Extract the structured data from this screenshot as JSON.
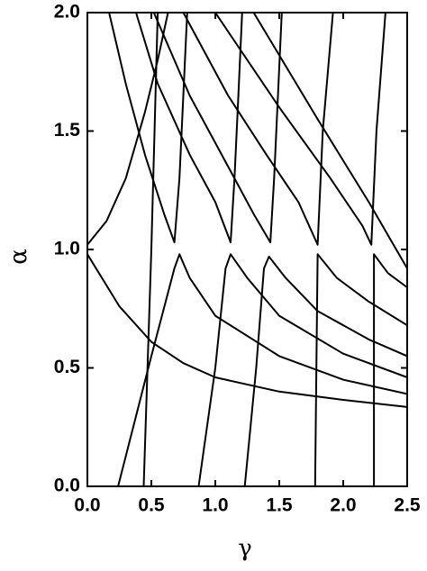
{
  "chart_data": {
    "type": "line",
    "xlabel": "γ",
    "ylabel": "α",
    "xlim": [
      0,
      2.5
    ],
    "ylim": [
      0,
      2.0
    ],
    "xticks": [
      {
        "value": 0,
        "label": "0.0"
      },
      {
        "value": 0.5,
        "label": "0.5"
      },
      {
        "value": 1,
        "label": "1.0"
      },
      {
        "value": 1.5,
        "label": "1.5"
      },
      {
        "value": 2,
        "label": "2.0"
      },
      {
        "value": 2.5,
        "label": "2.5"
      }
    ],
    "yticks": [
      {
        "value": 0,
        "label": "0.0"
      },
      {
        "value": 0.5,
        "label": "0.5"
      },
      {
        "value": 1,
        "label": "1.0"
      },
      {
        "value": 1.5,
        "label": "1.5"
      },
      {
        "value": 2,
        "label": "2.0"
      }
    ],
    "series": [
      {
        "color": "#000000",
        "x": [
          0,
          0.25,
          0.5,
          0.75,
          1,
          1.5,
          2,
          2.5
        ],
        "values": [
          0.98,
          0.76,
          0.61,
          0.52,
          0.46,
          0.4,
          0.365,
          0.335
        ]
      },
      {
        "color": "#000000",
        "x": [
          0,
          0.15,
          0.3,
          0.45,
          0.55,
          0.63
        ],
        "values": [
          1.02,
          1.12,
          1.3,
          1.58,
          1.8,
          2.0
        ]
      },
      {
        "color": "#000000",
        "x": [
          0.24,
          0.5,
          0.68,
          0.72,
          0.8,
          1,
          1.5,
          2,
          2.5
        ],
        "values": [
          0,
          0.55,
          0.92,
          0.98,
          0.88,
          0.72,
          0.55,
          0.45,
          0.39
        ]
      },
      {
        "color": "#000000",
        "x": [
          0.87,
          1,
          1.08,
          1.12,
          1.25,
          1.5,
          2,
          2.5
        ],
        "values": [
          0,
          0.5,
          0.92,
          0.98,
          0.88,
          0.72,
          0.56,
          0.46
        ]
      },
      {
        "color": "#000000",
        "x": [
          1.23,
          1.32,
          1.38,
          1.42,
          1.55,
          1.8,
          2.2,
          2.5
        ],
        "values": [
          0,
          0.5,
          0.92,
          0.97,
          0.88,
          0.74,
          0.62,
          0.55
        ]
      },
      {
        "color": "#000000",
        "x": [
          1.78,
          1.79,
          1.8,
          1.95,
          2.2,
          2.5
        ],
        "values": [
          0,
          0.5,
          0.98,
          0.88,
          0.78,
          0.68
        ]
      },
      {
        "color": "#000000",
        "x": [
          2.24,
          2.24,
          2.35,
          2.5
        ],
        "values": [
          0,
          0.98,
          0.9,
          0.84
        ]
      },
      {
        "color": "#000000",
        "x": [
          0.44,
          0.5,
          0.55
        ],
        "values": [
          0,
          1.0,
          2.0
        ]
      },
      {
        "color": "#000000",
        "x": [
          0.17,
          0.3,
          0.45,
          0.6,
          0.68,
          0.72,
          0.75,
          0.78
        ],
        "values": [
          2.0,
          1.7,
          1.4,
          1.15,
          1.03,
          1.3,
          1.65,
          2.0
        ]
      },
      {
        "color": "#000000",
        "x": [
          0.38,
          0.55,
          0.8,
          1,
          1.12,
          1.15,
          1.18,
          1.21
        ],
        "values": [
          2.0,
          1.7,
          1.4,
          1.2,
          1.03,
          1.3,
          1.65,
          2.0
        ]
      },
      {
        "color": "#000000",
        "x": [
          0.52,
          0.8,
          1.1,
          1.3,
          1.43,
          1.46,
          1.52
        ],
        "values": [
          2.0,
          1.65,
          1.35,
          1.15,
          1.03,
          1.3,
          2.0
        ]
      },
      {
        "color": "#000000",
        "x": [
          0.75,
          1.1,
          1.4,
          1.65,
          1.8,
          1.84,
          1.92
        ],
        "values": [
          2.0,
          1.65,
          1.4,
          1.2,
          1.02,
          1.5,
          2.0
        ]
      },
      {
        "color": "#000000",
        "x": [
          1.0,
          1.5,
          1.9,
          2.15,
          2.22,
          2.26,
          2.33
        ],
        "values": [
          2.0,
          1.6,
          1.3,
          1.1,
          1.02,
          1.5,
          2.0
        ]
      },
      {
        "color": "#000000",
        "x": [
          1.3,
          1.8,
          2.2,
          2.5
        ],
        "values": [
          2.0,
          1.55,
          1.2,
          0.92
        ]
      }
    ]
  }
}
